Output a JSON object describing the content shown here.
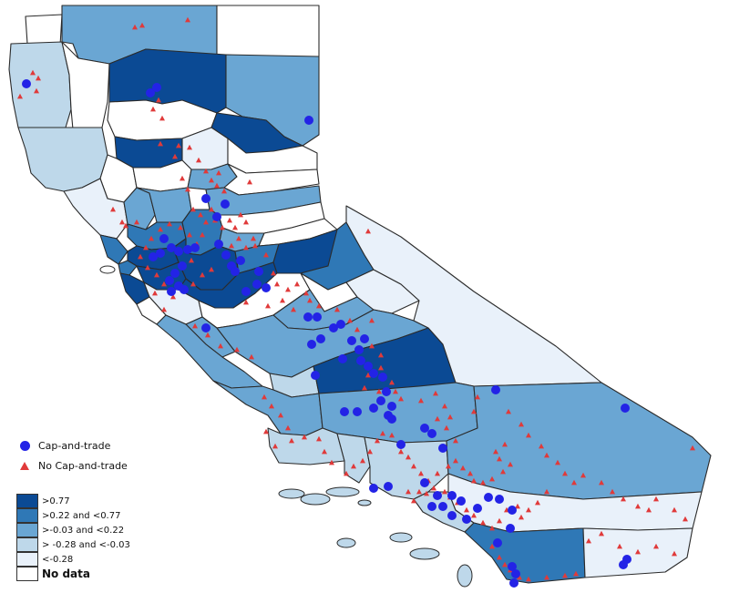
{
  "legend": {
    "symbols": [
      {
        "label": "Cap-and-trade",
        "shape": "circle",
        "color": "#2323e6"
      },
      {
        "label": "No Cap-and-trade",
        "shape": "triangle",
        "color": "#e03a3a"
      }
    ],
    "classes": [
      {
        "label": ">0.77",
        "color": "#0b4a94",
        "bold": false
      },
      {
        "label": ">0.22 and <0.77",
        "color": "#2f78b6",
        "bold": false
      },
      {
        "label": ">-0.03 and <0.22",
        "color": "#6aa6d3",
        "bold": false
      },
      {
        "label": "> -0.28 and <-0.03",
        "color": "#bed8ea",
        "bold": false
      },
      {
        "label": "<-0.28",
        "color": "#e9f1fa",
        "bold": false
      },
      {
        "label": "No data",
        "color": "#ffffff",
        "bold": true
      }
    ]
  },
  "colors": {
    "c5": "#0b4a94",
    "c4": "#2f78b6",
    "c3": "#6aa6d3",
    "c2": "#bed8ea",
    "c1": "#e9f1fa",
    "c0": "#ffffff",
    "outline": "#2b2b2b"
  }
}
